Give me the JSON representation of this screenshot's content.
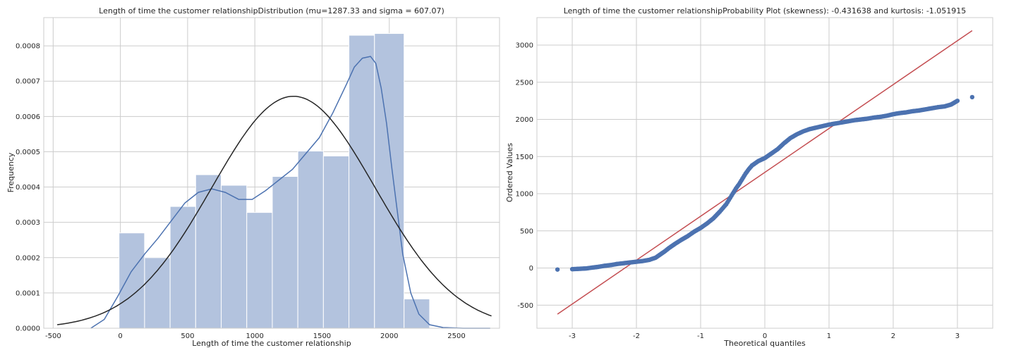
{
  "chart_data": [
    {
      "type": "bar",
      "title": "Length of time the customer relationshipDistribution (mu=1287.33 and sigma = 607.07)",
      "xlabel": "Length of time the customer relationship",
      "ylabel": "Frequency",
      "xlim": [
        -570,
        2820
      ],
      "ylim": [
        0,
        0.00088
      ],
      "xticks": [
        -500,
        0,
        500,
        1000,
        1500,
        2000,
        2500
      ],
      "xtick_labels": [
        "-500",
        "0",
        "500",
        "1000",
        "1500",
        "2000",
        "2500"
      ],
      "yticks": [
        0,
        0.0001,
        0.0002,
        0.0003,
        0.0004,
        0.0005,
        0.0006,
        0.0007,
        0.0008
      ],
      "ytick_labels": [
        "0.0000",
        "0.0001",
        "0.0002",
        "0.0003",
        "0.0004",
        "0.0005",
        "0.0006",
        "0.0007",
        "0.0008"
      ],
      "grid": true,
      "histogram": {
        "bin_edges": [
          -10,
          180,
          370,
          560,
          750,
          940,
          1130,
          1320,
          1510,
          1700,
          1890,
          2110,
          2300
        ],
        "values": [
          0.00027,
          0.0002,
          0.000345,
          0.000435,
          0.000405,
          0.000328,
          0.00043,
          0.000502,
          0.000488,
          0.00083,
          0.000835,
          8.3e-05
        ],
        "color": "#b3c3de"
      },
      "kde": {
        "color": "#4c72b0",
        "x": [
          -220,
          -120,
          -20,
          80,
          180,
          280,
          380,
          480,
          580,
          680,
          780,
          880,
          980,
          1080,
          1180,
          1280,
          1380,
          1480,
          1580,
          1680,
          1740,
          1800,
          1860,
          1900,
          1940,
          1980,
          2020,
          2060,
          2100,
          2160,
          2220,
          2300,
          2400,
          2550,
          2750
        ],
        "y": [
          0.0,
          2.5e-05,
          9e-05,
          0.00016,
          0.00021,
          0.000255,
          0.000305,
          0.000355,
          0.000385,
          0.000395,
          0.000385,
          0.000365,
          0.000365,
          0.00039,
          0.00042,
          0.00045,
          0.000495,
          0.00054,
          0.00061,
          0.00069,
          0.00074,
          0.000765,
          0.00077,
          0.00075,
          0.00068,
          0.00058,
          0.00045,
          0.00033,
          0.00021,
          0.0001,
          4e-05,
          1e-05,
          2e-06,
          0.0,
          0.0
        ]
      },
      "normal_fit": {
        "color": "#262626",
        "mu": 1287.33,
        "sigma": 607.07,
        "x_range": [
          -470,
          2760
        ]
      }
    },
    {
      "type": "scatter",
      "title": "Length of time the customer relationshipProbability Plot (skewness): -0.431638 and kurtosis: -1.051915",
      "xlabel": "Theoretical quantiles",
      "ylabel": "Ordered Values",
      "xlim": [
        -3.55,
        3.55
      ],
      "ylim": [
        -810,
        3370
      ],
      "xticks": [
        -3,
        -2,
        -1,
        0,
        1,
        2,
        3
      ],
      "xtick_labels": [
        "-3",
        "-2",
        "-1",
        "0",
        "1",
        "2",
        "3"
      ],
      "yticks": [
        -500,
        0,
        500,
        1000,
        1500,
        2000,
        2500,
        3000
      ],
      "ytick_labels": [
        "-500",
        "0",
        "500",
        "1000",
        "1500",
        "2000",
        "2500",
        "3000"
      ],
      "grid": true,
      "points": {
        "color": "#4c72b0",
        "x": [
          -3.23,
          -3.0,
          -2.88,
          -2.78,
          -2.7,
          -2.6,
          -2.5,
          -2.4,
          -2.3,
          -2.2,
          -2.1,
          -2.0,
          -1.9,
          -1.8,
          -1.7,
          -1.65,
          -1.6,
          -1.55,
          -1.5,
          -1.4,
          -1.3,
          -1.2,
          -1.1,
          -1.0,
          -0.9,
          -0.8,
          -0.7,
          -0.6,
          -0.5,
          -0.45,
          -0.4,
          -0.35,
          -0.3,
          -0.25,
          -0.2,
          -0.15,
          -0.1,
          -0.05,
          0.0,
          0.05,
          0.1,
          0.2,
          0.3,
          0.4,
          0.5,
          0.6,
          0.7,
          0.8,
          0.9,
          1.0,
          1.1,
          1.2,
          1.3,
          1.4,
          1.5,
          1.6,
          1.7,
          1.8,
          1.9,
          2.0,
          2.1,
          2.2,
          2.3,
          2.4,
          2.5,
          2.6,
          2.7,
          2.8,
          2.9,
          3.0,
          3.23
        ],
        "y": [
          -20,
          -15,
          -10,
          -5,
          5,
          15,
          30,
          40,
          55,
          65,
          75,
          85,
          95,
          110,
          140,
          170,
          200,
          230,
          265,
          325,
          380,
          430,
          490,
          540,
          600,
          670,
          760,
          860,
          1000,
          1070,
          1130,
          1200,
          1270,
          1330,
          1380,
          1410,
          1440,
          1460,
          1480,
          1510,
          1540,
          1600,
          1680,
          1750,
          1800,
          1840,
          1870,
          1890,
          1910,
          1930,
          1945,
          1960,
          1975,
          1990,
          2000,
          2010,
          2025,
          2035,
          2050,
          2070,
          2085,
          2095,
          2110,
          2120,
          2135,
          2150,
          2165,
          2175,
          2200,
          2250,
          2300
        ],
        "line_color": "#c44e52",
        "line_x": [
          -3.23,
          3.23
        ],
        "line_y": [
          -620,
          3195
        ]
      }
    }
  ]
}
